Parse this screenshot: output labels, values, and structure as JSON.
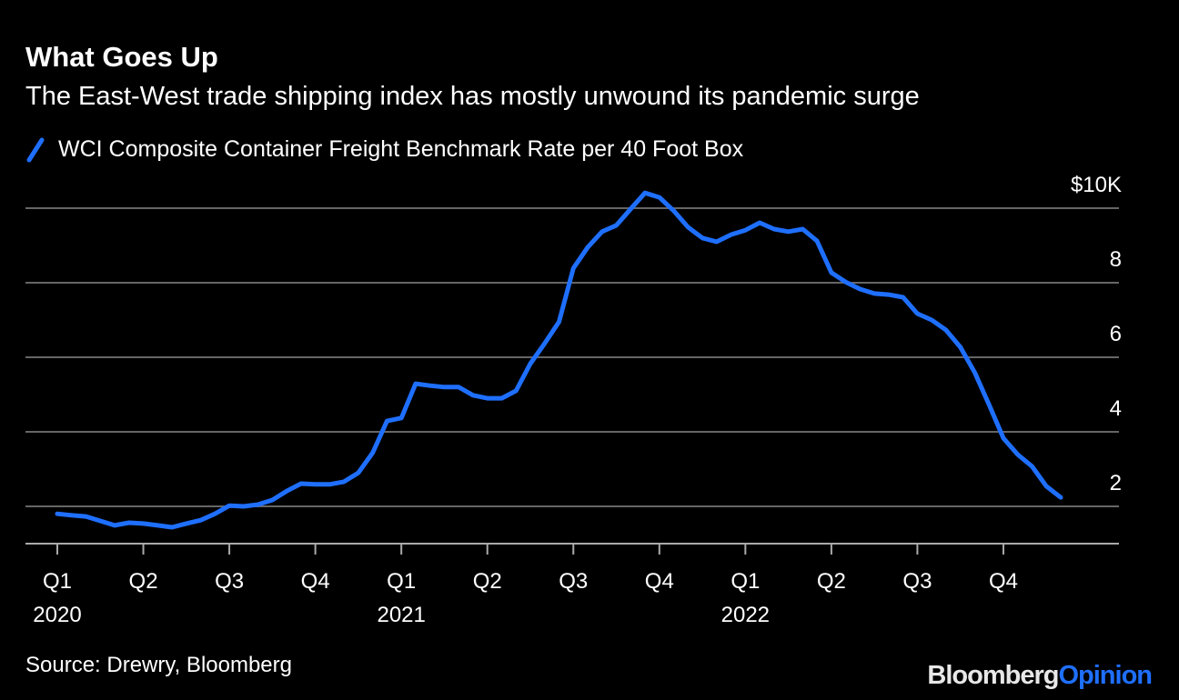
{
  "chart_data": {
    "type": "line",
    "title": "What Goes Up",
    "subtitle": "The East-West trade shipping index has mostly unwound its pandemic surge",
    "source": "Source: Drewry, Bloomberg",
    "brand": [
      "Bloomberg",
      "Opinion"
    ],
    "categories": [
      "Q1",
      null,
      null,
      null,
      null,
      null,
      "Q2",
      null,
      null,
      null,
      null,
      null,
      "Q3",
      null,
      null,
      null,
      null,
      null,
      "Q4",
      null,
      null,
      null,
      null,
      null,
      "Q1",
      null,
      null,
      null,
      null,
      null,
      "Q2",
      null,
      null,
      null,
      null,
      null,
      "Q3",
      null,
      null,
      null,
      null,
      null,
      "Q4",
      null,
      null,
      null,
      null,
      null,
      "Q1",
      null,
      null,
      null,
      null,
      null,
      "Q2",
      null,
      null,
      null,
      null,
      null,
      "Q3",
      null,
      null,
      null,
      null,
      null,
      "Q4",
      null,
      null,
      null,
      null
    ],
    "years": [
      "2020",
      null,
      null,
      null,
      null,
      null,
      null,
      null,
      null,
      null,
      null,
      null,
      null,
      null,
      null,
      null,
      null,
      null,
      null,
      null,
      null,
      null,
      null,
      null,
      "2021",
      null,
      null,
      null,
      null,
      null,
      null,
      null,
      null,
      null,
      null,
      null,
      null,
      null,
      null,
      null,
      null,
      null,
      null,
      null,
      null,
      null,
      null,
      null,
      "2022",
      null,
      null,
      null,
      null,
      null,
      null,
      null,
      null,
      null,
      null,
      null,
      null,
      null,
      null,
      null,
      null,
      null,
      null,
      null,
      null,
      null,
      null
    ],
    "series": [
      {
        "name": "WCI Composite Container Freight Benchmark Rate per 40 Foot Box",
        "color": "#1f6fff",
        "values": [
          1.8,
          1.76,
          1.73,
          1.61,
          1.49,
          1.56,
          1.54,
          1.49,
          1.44,
          1.54,
          1.63,
          1.8,
          2.02,
          2.0,
          2.05,
          2.17,
          2.41,
          2.61,
          2.59,
          2.59,
          2.66,
          2.9,
          3.44,
          4.29,
          4.37,
          5.29,
          5.24,
          5.2,
          5.2,
          4.98,
          4.9,
          4.9,
          5.1,
          5.83,
          6.37,
          6.95,
          8.39,
          8.95,
          9.37,
          9.54,
          9.98,
          10.41,
          10.29,
          9.93,
          9.49,
          9.2,
          9.1,
          9.29,
          9.41,
          9.61,
          9.44,
          9.37,
          9.44,
          9.12,
          8.27,
          8.02,
          7.83,
          7.71,
          7.68,
          7.61,
          7.17,
          7.0,
          6.73,
          6.27,
          5.59,
          4.73,
          3.83,
          3.39,
          3.07,
          2.54,
          2.24
        ]
      }
    ],
    "ylim": [
      1,
      10.5
    ],
    "yticks": [
      2,
      4,
      6,
      8,
      {
        "value": 10,
        "label": "$10K"
      }
    ],
    "grid": true
  }
}
